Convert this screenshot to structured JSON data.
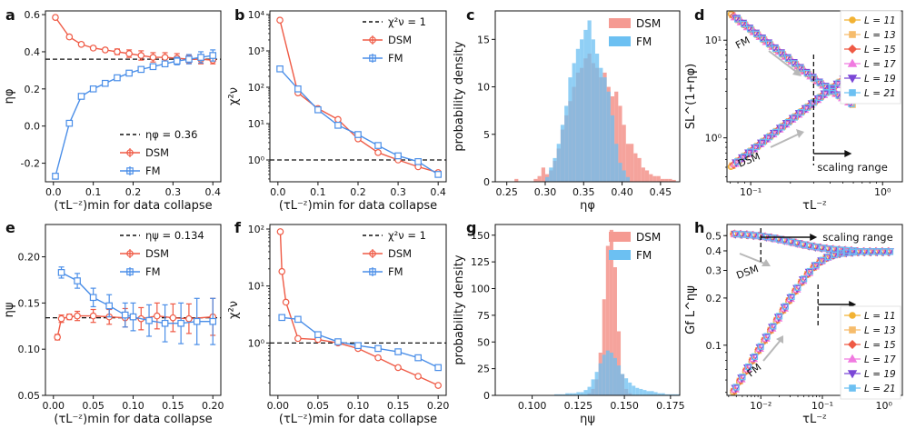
{
  "colors": {
    "dsm": "#ef5a45",
    "fm": "#4a8ee8",
    "dsm_hist": "#f59a92",
    "fm_hist": "#6cc0f2",
    "ref": "#222222"
  },
  "chart_data": [
    {
      "id": "a",
      "panel_label": "a",
      "type": "line",
      "xlabel": "(τL⁻ᶻ)min for data collapse",
      "ylabel": "ηφ",
      "xlim": [
        -0.02,
        0.42
      ],
      "ylim": [
        -0.3,
        0.62
      ],
      "xticks": [
        "0.0",
        "0.1",
        "0.2",
        "0.3",
        "0.4"
      ],
      "xtick_values": [
        0,
        0.1,
        0.2,
        0.3,
        0.4
      ],
      "yticks": [
        "-0.2",
        "0.0",
        "0.2",
        "0.4",
        "0.6"
      ],
      "ytick_values": [
        -0.2,
        0,
        0.2,
        0.4,
        0.6
      ],
      "refline": {
        "y": 0.36,
        "label": "ηφ = 0.36"
      },
      "legend": [
        "DSM",
        "FM"
      ],
      "series": [
        {
          "name": "DSM",
          "marker": "o",
          "x": [
            0.005,
            0.04,
            0.07,
            0.1,
            0.13,
            0.16,
            0.19,
            0.22,
            0.25,
            0.28,
            0.31,
            0.34,
            0.37,
            0.4
          ],
          "y": [
            0.585,
            0.48,
            0.44,
            0.42,
            0.41,
            0.4,
            0.39,
            0.38,
            0.37,
            0.37,
            0.365,
            0.36,
            0.36,
            0.355
          ],
          "err": [
            0.01,
            0.01,
            0.01,
            0.01,
            0.01,
            0.015,
            0.02,
            0.025,
            0.025,
            0.025,
            0.025,
            0.02,
            0.025,
            0.02
          ]
        },
        {
          "name": "FM",
          "marker": "s",
          "x": [
            0.005,
            0.04,
            0.07,
            0.1,
            0.13,
            0.16,
            0.19,
            0.22,
            0.25,
            0.28,
            0.31,
            0.34,
            0.37,
            0.4
          ],
          "y": [
            -0.27,
            0.015,
            0.16,
            0.2,
            0.23,
            0.26,
            0.285,
            0.305,
            0.32,
            0.335,
            0.35,
            0.36,
            0.37,
            0.38
          ],
          "err": [
            0.01,
            0.01,
            0.01,
            0.01,
            0.01,
            0.01,
            0.01,
            0.01,
            0.01,
            0.015,
            0.02,
            0.025,
            0.03,
            0.03
          ]
        }
      ]
    },
    {
      "id": "b",
      "panel_label": "b",
      "type": "line",
      "yscale": "log",
      "xlabel": "(τL⁻ᶻ)min for data collapse",
      "ylabel": "χ²ν",
      "xlim": [
        -0.02,
        0.42
      ],
      "ylim_log": [
        -0.6,
        4.1
      ],
      "xticks": [
        "0.0",
        "0.1",
        "0.2",
        "0.3",
        "0.4"
      ],
      "xtick_values": [
        0,
        0.1,
        0.2,
        0.3,
        0.4
      ],
      "yticks": [
        "10⁰",
        "10¹",
        "10²",
        "10³",
        "10⁴"
      ],
      "ytick_exps": [
        0,
        1,
        2,
        3,
        4
      ],
      "refline": {
        "y": 1,
        "label": "χ²ν = 1"
      },
      "legend": [
        "DSM",
        "FM"
      ],
      "series": [
        {
          "name": "DSM",
          "marker": "o",
          "x": [
            0.005,
            0.05,
            0.1,
            0.15,
            0.2,
            0.25,
            0.3,
            0.35,
            0.4
          ],
          "y": [
            7000,
            70,
            26,
            13,
            3.8,
            1.6,
            1.0,
            0.65,
            0.45
          ]
        },
        {
          "name": "FM",
          "marker": "s",
          "x": [
            0.005,
            0.05,
            0.1,
            0.15,
            0.2,
            0.25,
            0.3,
            0.35,
            0.4
          ],
          "y": [
            320,
            90,
            24,
            9,
            5,
            2.5,
            1.3,
            0.9,
            0.4
          ]
        }
      ]
    },
    {
      "id": "c",
      "panel_label": "c",
      "type": "histogram",
      "xlabel": "ηφ",
      "ylabel": "probability density",
      "xlim": [
        0.235,
        0.475
      ],
      "ylim": [
        0,
        18
      ],
      "xticks": [
        "0.25",
        "0.30",
        "0.35",
        "0.40",
        "0.45"
      ],
      "xtick_values": [
        0.25,
        0.3,
        0.35,
        0.4,
        0.45
      ],
      "yticks": [
        "0",
        "5",
        "10",
        "15"
      ],
      "ytick_values": [
        0,
        5,
        10,
        15
      ],
      "legend": [
        "DSM",
        "FM"
      ],
      "bin_start": 0.26,
      "bin_width": 0.005,
      "series": [
        {
          "name": "DSM",
          "counts": [
            0.3,
            0,
            0,
            0,
            0,
            0.3,
            0.6,
            1.5,
            0.8,
            1.2,
            2.2,
            3.5,
            5.5,
            7,
            8.5,
            10,
            11.5,
            12,
            13,
            13.5,
            12.5,
            12,
            11,
            11.5,
            10,
            9,
            9.5,
            8,
            6,
            4,
            4,
            3,
            2.5,
            1.5,
            1.2,
            0.8,
            0.6,
            0.6,
            0.3,
            0.3,
            0.3,
            0.2
          ]
        },
        {
          "name": "FM",
          "counts": [
            0,
            0,
            0,
            0,
            0,
            0,
            0,
            0,
            0.5,
            1.5,
            2.5,
            4,
            6,
            8,
            11,
            12.5,
            14,
            15,
            16,
            17,
            15,
            13.5,
            12,
            11,
            9.5,
            7,
            4,
            2,
            1.2,
            0.5,
            0,
            0,
            0,
            0,
            0,
            0,
            0,
            0,
            0,
            0,
            0,
            0
          ]
        }
      ]
    },
    {
      "id": "d",
      "panel_label": "d",
      "type": "scatter",
      "xscale": "log",
      "yscale": "log",
      "xlabel": "τL⁻ᶻ",
      "ylabel": "SL^(1+ηφ)",
      "xlim_log": [
        -1.18,
        0.15
      ],
      "ylim_log": [
        -0.45,
        1.3
      ],
      "xticks": [
        "10⁻¹",
        "10⁰"
      ],
      "xtick_exps": [
        -1,
        0
      ],
      "yticks": [
        "10⁰",
        "10¹"
      ],
      "ytick_exps": [
        0,
        1
      ],
      "annotations": [
        "FM",
        "DSM",
        "scaling range"
      ],
      "scaling_start": 0.3,
      "legend": [
        "L = 11",
        "L = 13",
        "L = 15",
        "L = 17",
        "L = 19",
        "L = 21"
      ],
      "series": [
        {
          "name": "L = 11",
          "color": "#f2b233",
          "marker": "o"
        },
        {
          "name": "L = 13",
          "color": "#f6bc6c",
          "marker": "s"
        },
        {
          "name": "L = 15",
          "color": "#ef5a45",
          "marker": "D"
        },
        {
          "name": "L = 17",
          "color": "#f07ae0",
          "marker": "^"
        },
        {
          "name": "L = 19",
          "color": "#7b47d6",
          "marker": "v"
        },
        {
          "name": "L = 21",
          "color": "#6cc0f2",
          "marker": "s"
        }
      ]
    },
    {
      "id": "e",
      "panel_label": "e",
      "type": "line",
      "xlabel": "(τL⁻ᶻ)min for data collapse",
      "ylabel": "ηψ",
      "xlim": [
        -0.01,
        0.21
      ],
      "ylim": [
        0.05,
        0.235
      ],
      "xticks": [
        "0.00",
        "0.05",
        "0.10",
        "0.15",
        "0.20"
      ],
      "xtick_values": [
        0,
        0.05,
        0.1,
        0.15,
        0.2
      ],
      "yticks": [
        "0.05",
        "0.10",
        "0.15",
        "0.20"
      ],
      "ytick_values": [
        0.05,
        0.1,
        0.15,
        0.2
      ],
      "refline": {
        "y": 0.134,
        "label": "ηψ = 0.134"
      },
      "legend": [
        "DSM",
        "FM"
      ],
      "series": [
        {
          "name": "DSM",
          "marker": "o",
          "x": [
            0.005,
            0.01,
            0.02,
            0.03,
            0.05,
            0.07,
            0.09,
            0.11,
            0.13,
            0.15,
            0.17,
            0.2
          ],
          "y": [
            0.113,
            0.133,
            0.135,
            0.136,
            0.136,
            0.135,
            0.134,
            0.133,
            0.136,
            0.134,
            0.133,
            0.135
          ],
          "err": [
            0.003,
            0.004,
            0.003,
            0.005,
            0.007,
            0.008,
            0.01,
            0.012,
            0.014,
            0.015,
            0.016,
            0.02
          ]
        },
        {
          "name": "FM",
          "marker": "s",
          "x": [
            0.01,
            0.03,
            0.05,
            0.07,
            0.09,
            0.1,
            0.12,
            0.14,
            0.16,
            0.18,
            0.2
          ],
          "y": [
            0.183,
            0.174,
            0.156,
            0.147,
            0.137,
            0.135,
            0.131,
            0.128,
            0.128,
            0.13,
            0.13
          ],
          "err": [
            0.006,
            0.008,
            0.01,
            0.012,
            0.013,
            0.015,
            0.017,
            0.02,
            0.022,
            0.025,
            0.025
          ]
        }
      ]
    },
    {
      "id": "f",
      "panel_label": "f",
      "type": "line",
      "yscale": "log",
      "xlabel": "(τL⁻ᶻ)min for data collapse",
      "ylabel": "χ²ν",
      "xlim": [
        -0.01,
        0.21
      ],
      "ylim_log": [
        -0.92,
        2.08
      ],
      "xticks": [
        "0.00",
        "0.05",
        "0.10",
        "0.15",
        "0.20"
      ],
      "xtick_values": [
        0,
        0.05,
        0.1,
        0.15,
        0.2
      ],
      "yticks": [
        "10⁰",
        "10¹",
        "10²"
      ],
      "ytick_exps": [
        0,
        1,
        2
      ],
      "refline": {
        "y": 1,
        "label": "χ²ν = 1"
      },
      "legend": [
        "DSM",
        "FM"
      ],
      "series": [
        {
          "name": "DSM",
          "marker": "o",
          "x": [
            0.003,
            0.005,
            0.01,
            0.025,
            0.05,
            0.075,
            0.1,
            0.125,
            0.15,
            0.175,
            0.2
          ],
          "y": [
            90,
            18,
            5.2,
            1.2,
            1.15,
            1.0,
            0.8,
            0.55,
            0.37,
            0.26,
            0.18
          ]
        },
        {
          "name": "FM",
          "marker": "s",
          "x": [
            0.005,
            0.025,
            0.05,
            0.075,
            0.1,
            0.125,
            0.15,
            0.175,
            0.2
          ],
          "y": [
            2.8,
            2.6,
            1.4,
            1.05,
            0.9,
            0.8,
            0.7,
            0.55,
            0.37
          ]
        }
      ]
    },
    {
      "id": "g",
      "panel_label": "g",
      "type": "histogram",
      "xlabel": "ηψ",
      "ylabel": "probability density",
      "xlim": [
        0.08,
        0.18
      ],
      "ylim": [
        0,
        160
      ],
      "xticks": [
        "0.100",
        "0.125",
        "0.150",
        "0.175"
      ],
      "xtick_values": [
        0.1,
        0.125,
        0.15,
        0.175
      ],
      "yticks": [
        "0",
        "25",
        "50",
        "75",
        "100",
        "125",
        "150"
      ],
      "ytick_values": [
        0,
        25,
        50,
        75,
        100,
        125,
        150
      ],
      "legend": [
        "DSM",
        "FM"
      ],
      "bin_start": 0.09,
      "bin_width": 0.002,
      "series": [
        {
          "name": "DSM",
          "counts": [
            0,
            0,
            0,
            0,
            0,
            0,
            0,
            0,
            0,
            0,
            0,
            0,
            0,
            0,
            0,
            0,
            0,
            0,
            0,
            0,
            2,
            6,
            15,
            40,
            90,
            140,
            155,
            120,
            60,
            20,
            6,
            2,
            0,
            0,
            0,
            0,
            0,
            0,
            0,
            0,
            0,
            0,
            0,
            0,
            0
          ]
        },
        {
          "name": "FM",
          "counts": [
            0,
            0,
            0,
            0,
            0,
            0,
            0,
            0,
            0,
            0,
            0,
            1,
            1,
            1,
            2,
            2,
            2,
            3,
            3,
            5,
            8,
            15,
            22,
            30,
            38,
            42,
            40,
            35,
            28,
            20,
            16,
            12,
            9,
            7,
            6,
            5,
            4,
            4,
            3,
            2,
            2,
            1,
            1,
            1,
            1
          ]
        }
      ]
    },
    {
      "id": "h",
      "panel_label": "h",
      "type": "scatter",
      "xscale": "log",
      "yscale": "log",
      "xlabel": "τL⁻ᶻ",
      "ylabel": "Gf L^ηψ",
      "xlim_log": [
        -2.55,
        0.3
      ],
      "ylim_log": [
        -1.32,
        -0.23
      ],
      "xticks": [
        "10⁻²",
        "10⁻¹",
        "10⁰"
      ],
      "xtick_exps": [
        -2,
        -1,
        0
      ],
      "ytick_values": [
        0.1,
        0.2,
        0.3,
        0.4,
        0.5
      ],
      "yticks": [
        "0.1",
        "0.2",
        "0.3",
        "0.4",
        "0.5"
      ],
      "annotations": [
        "DSM",
        "FM",
        "scaling range"
      ],
      "legend": [
        "L = 11",
        "L = 13",
        "L = 15",
        "L = 17",
        "L = 19",
        "L = 21"
      ],
      "series": [
        {
          "name": "L = 11",
          "color": "#f2b233",
          "marker": "o"
        },
        {
          "name": "L = 13",
          "color": "#f6bc6c",
          "marker": "s"
        },
        {
          "name": "L = 15",
          "color": "#ef5a45",
          "marker": "D"
        },
        {
          "name": "L = 17",
          "color": "#f07ae0",
          "marker": "^"
        },
        {
          "name": "L = 19",
          "color": "#7b47d6",
          "marker": "v"
        },
        {
          "name": "L = 21",
          "color": "#6cc0f2",
          "marker": "s"
        }
      ]
    }
  ]
}
